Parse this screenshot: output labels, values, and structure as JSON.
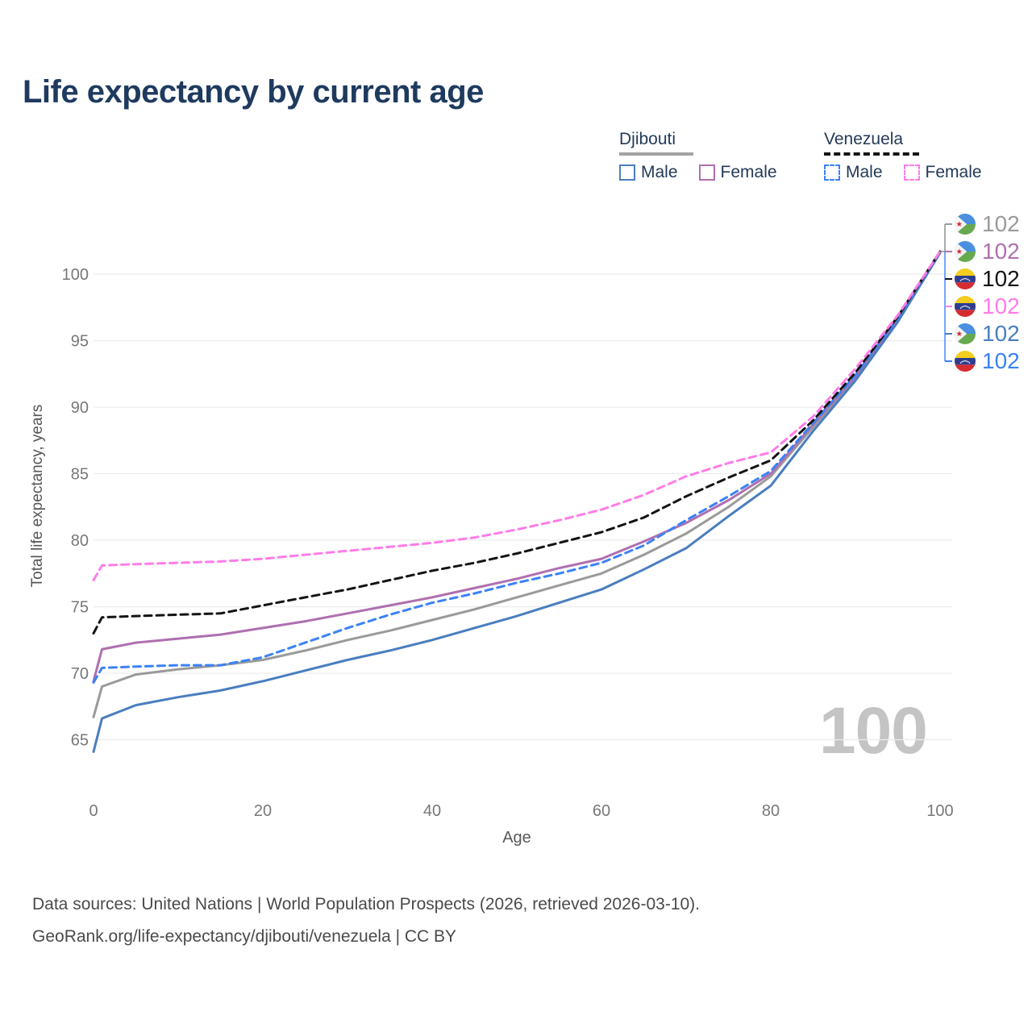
{
  "title": "Life expectancy by current age",
  "legend": {
    "groups": [
      {
        "label": "Djibouti",
        "line_style": "solid",
        "underline_color": "#a3a3a3",
        "items": [
          {
            "label": "Male",
            "color": "#4a7ebf"
          },
          {
            "label": "Female",
            "color": "#af6fb0"
          }
        ]
      },
      {
        "label": "Venezuela",
        "line_style": "dashed",
        "underline_color": "#151515",
        "items": [
          {
            "label": "Male",
            "color": "#3b82f6"
          },
          {
            "label": "Female",
            "color": "#ff7ce8"
          }
        ]
      }
    ]
  },
  "chart_data": {
    "type": "line",
    "title": "Life expectancy by current age",
    "xlabel": "Age",
    "ylabel": "Total life expectancy, years",
    "x_ticks": [
      0,
      20,
      40,
      60,
      80,
      100
    ],
    "y_ticks": [
      65,
      70,
      75,
      80,
      85,
      90,
      95,
      100
    ],
    "xlim": [
      0,
      100
    ],
    "ylim": [
      63.5,
      103
    ],
    "grid": "horizontal-only",
    "legend_position": "top-right",
    "x": [
      0,
      1,
      5,
      10,
      15,
      20,
      25,
      30,
      35,
      40,
      45,
      50,
      55,
      60,
      65,
      70,
      75,
      80,
      85,
      90,
      95,
      100
    ],
    "series": [
      {
        "id": "djibouti-all",
        "name": "Djibouti All",
        "country": "Djibouti",
        "sex": "All",
        "color": "#9a9a9a",
        "dash": "solid",
        "values": [
          66.7,
          69.0,
          69.9,
          70.3,
          70.6,
          71.0,
          71.7,
          72.5,
          73.2,
          74.0,
          74.8,
          75.7,
          76.6,
          77.5,
          78.9,
          80.5,
          82.5,
          84.8,
          88.5,
          92.2,
          96.5,
          101.6
        ]
      },
      {
        "id": "djibouti-female",
        "name": "Djibouti Female",
        "country": "Djibouti",
        "sex": "Female",
        "color": "#af6fb0",
        "dash": "solid",
        "values": [
          69.4,
          71.8,
          72.3,
          72.6,
          72.9,
          73.4,
          73.9,
          74.5,
          75.1,
          75.7,
          76.4,
          77.1,
          77.9,
          78.6,
          79.9,
          81.3,
          83.0,
          85.0,
          88.7,
          92.3,
          96.6,
          101.7
        ]
      },
      {
        "id": "djibouti-male",
        "name": "Djibouti Male",
        "country": "Djibouti",
        "sex": "Male",
        "color": "#4a7ebf",
        "dash": "solid",
        "values": [
          64.1,
          66.6,
          67.6,
          68.2,
          68.7,
          69.4,
          70.2,
          71.0,
          71.7,
          72.5,
          73.4,
          74.3,
          75.3,
          76.3,
          77.8,
          79.4,
          81.8,
          84.1,
          88.2,
          92.0,
          96.4,
          101.6
        ]
      },
      {
        "id": "venezuela-male",
        "name": "Venezuela Male",
        "country": "Venezuela",
        "sex": "Male",
        "color": "#3b82f6",
        "dash": "dashed",
        "values": [
          69.3,
          70.4,
          70.5,
          70.6,
          70.6,
          71.2,
          72.3,
          73.4,
          74.4,
          75.3,
          76.0,
          76.8,
          77.5,
          78.3,
          79.6,
          81.5,
          83.3,
          85.2,
          88.8,
          92.4,
          96.7,
          101.7
        ]
      },
      {
        "id": "venezuela-all",
        "name": "Venezuela All",
        "country": "Venezuela",
        "sex": "All",
        "color": "#141414",
        "dash": "dashed",
        "values": [
          73.0,
          74.2,
          74.3,
          74.4,
          74.5,
          75.1,
          75.7,
          76.3,
          77.0,
          77.7,
          78.3,
          79.0,
          79.8,
          80.6,
          81.7,
          83.3,
          84.7,
          86.0,
          89.0,
          92.6,
          96.8,
          101.7
        ]
      },
      {
        "id": "venezuela-female",
        "name": "Venezuela Female",
        "country": "Venezuela",
        "sex": "Female",
        "color": "#ff7ce8",
        "dash": "dashed",
        "values": [
          77.0,
          78.1,
          78.2,
          78.3,
          78.4,
          78.6,
          78.9,
          79.2,
          79.5,
          79.8,
          80.2,
          80.8,
          81.5,
          82.3,
          83.4,
          84.8,
          85.8,
          86.6,
          89.3,
          92.9,
          96.9,
          101.7
        ]
      }
    ]
  },
  "end_labels": [
    {
      "series": "Djibouti All",
      "flag": "djibouti",
      "value": "102",
      "color": "#9a9a9a"
    },
    {
      "series": "Djibouti Female",
      "flag": "djibouti",
      "value": "102",
      "color": "#af6fb0"
    },
    {
      "series": "Venezuela All",
      "flag": "venezuela",
      "value": "102",
      "color": "#141414"
    },
    {
      "series": "Venezuela Female",
      "flag": "venezuela",
      "value": "102",
      "color": "#ff7ce8"
    },
    {
      "series": "Djibouti Male",
      "flag": "djibouti",
      "value": "102",
      "color": "#4a7ebf"
    },
    {
      "series": "Venezuela Male",
      "flag": "venezuela",
      "value": "102",
      "color": "#3b82f6"
    }
  ],
  "watermark": "100",
  "axes": {
    "x_label": "Age",
    "y_label": "Total life expectancy, years"
  },
  "footer": {
    "line1": "Data sources: United Nations | World Population Prospects (2026, retrieved 2026-03-10).",
    "line2": "GeoRank.org/life-expectancy/djibouti/venezuela | CC BY"
  }
}
